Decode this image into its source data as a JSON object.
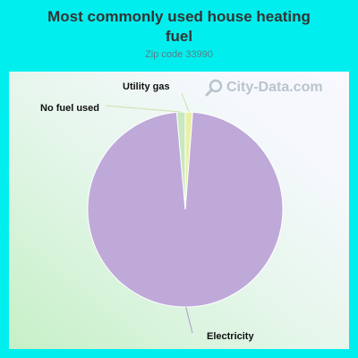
{
  "page": {
    "title": "Most commonly used house heating fuel",
    "subtitle": "Zip code 33990",
    "watermark": "City-Data.com",
    "watermark_icon": "magnifier-icon"
  },
  "colors": {
    "background": "#00eeee",
    "slice_electricity": "#bfa9d9",
    "slice_utility_gas": "#e8f0a8",
    "slice_no_fuel": "#c8e8c0"
  },
  "chart_data": {
    "type": "pie",
    "title": "Most commonly used house heating fuel",
    "subtitle": "Zip code 33990",
    "categories": [
      "Electricity",
      "Utility gas",
      "No fuel used"
    ],
    "values": [
      97.4,
      1.2,
      1.4
    ],
    "unit": "%",
    "legend": "none",
    "labels_on_chart": true
  }
}
